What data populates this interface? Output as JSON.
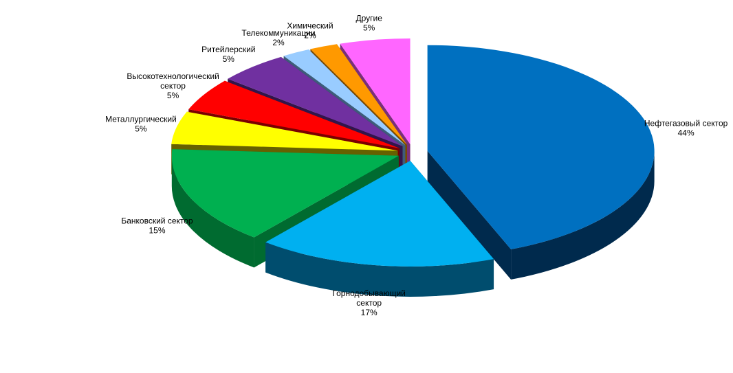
{
  "chart_data": {
    "type": "pie",
    "style": "3d-exploded",
    "title": "",
    "legend": "none",
    "slices": [
      {
        "label_lines": [
          "Нефтегазовый сектор"
        ],
        "value": 44,
        "pct_label": "44%",
        "color": "#0070C0",
        "side_color": "#002A4D"
      },
      {
        "label_lines": [
          "Горнодобывающий",
          "сектор"
        ],
        "value": 17,
        "pct_label": "17%",
        "color": "#00B0F0",
        "side_color": "#004D6E"
      },
      {
        "label_lines": [
          "Банковский сектор"
        ],
        "value": 15,
        "pct_label": "15%",
        "color": "#00B050",
        "side_color": "#006B30"
      },
      {
        "label_lines": [
          "Металлургический"
        ],
        "value": 5,
        "pct_label": "5%",
        "color": "#FFFF00",
        "side_color": "#666100"
      },
      {
        "label_lines": [
          "Высокотехнологический",
          "сектор"
        ],
        "value": 5,
        "pct_label": "5%",
        "color": "#FF0000",
        "side_color": "#7A0000"
      },
      {
        "label_lines": [
          "Ритейлерский"
        ],
        "value": 5,
        "pct_label": "5%",
        "color": "#7030A0",
        "side_color": "#32154A"
      },
      {
        "label_lines": [
          "Телекоммуникации"
        ],
        "value": 2,
        "pct_label": "2%",
        "color": "#99CCFF",
        "side_color": "#3E5C7A"
      },
      {
        "label_lines": [
          "Химический"
        ],
        "value": 2,
        "pct_label": "2%",
        "color": "#FF9900",
        "side_color": "#7A4A00"
      },
      {
        "label_lines": [
          "Другие"
        ],
        "value": 5,
        "pct_label": "5%",
        "color": "#FF66FF",
        "side_color": "#7A2F7A"
      }
    ]
  }
}
